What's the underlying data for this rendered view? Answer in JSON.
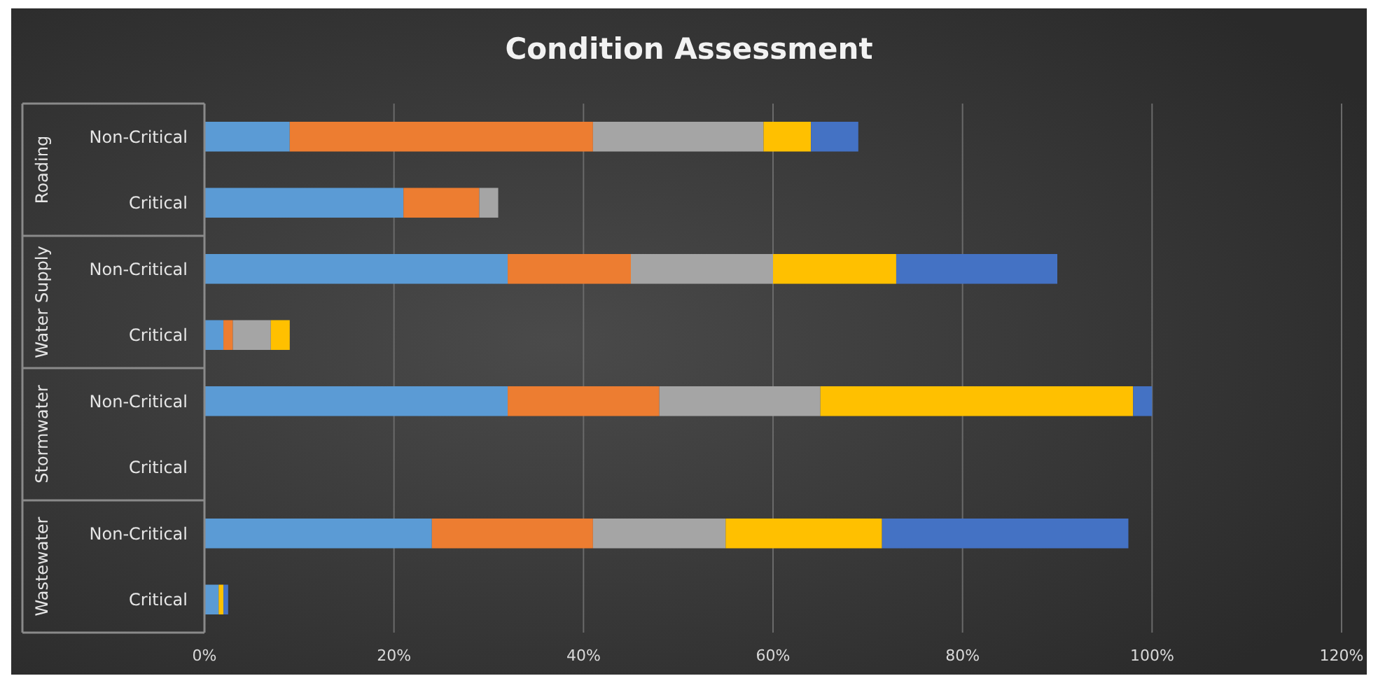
{
  "chart_data": {
    "type": "bar",
    "orientation": "horizontal",
    "stacked": true,
    "title": "Condition Assessment",
    "categories": [
      "Non-Critical",
      "Critical",
      "Non-Critical",
      "Critical",
      "Non-Critical",
      "Critical",
      "Non-Critical",
      "Critical"
    ],
    "annotations": [
      "Roading",
      "Water Supply",
      "Stormwater",
      "Wastewater"
    ],
    "series": [
      {
        "color": "#5b9bd5",
        "values": [
          9,
          21,
          32,
          2,
          32,
          0,
          24,
          1.5
        ]
      },
      {
        "color": "#ed7d31",
        "values": [
          32,
          8,
          13,
          1,
          16,
          0,
          17,
          0
        ]
      },
      {
        "color": "#a5a5a5",
        "values": [
          18,
          2,
          15,
          4,
          17,
          0,
          14,
          0
        ]
      },
      {
        "color": "#ffc000",
        "values": [
          5,
          0,
          13,
          2,
          33,
          0,
          16.5,
          0.5
        ]
      },
      {
        "color": "#4472c4",
        "values": [
          5,
          0,
          17,
          0,
          2,
          0,
          26,
          0.5
        ]
      }
    ],
    "xlim": [
      0,
      120
    ],
    "xticks": [
      {
        "value": 0,
        "label": "0%"
      },
      {
        "value": 20,
        "label": "20%"
      },
      {
        "value": 40,
        "label": "40%"
      },
      {
        "value": 60,
        "label": "60%"
      },
      {
        "value": 80,
        "label": "80%"
      },
      {
        "value": 100,
        "label": "100%"
      },
      {
        "value": 120,
        "label": "120%"
      }
    ],
    "grid": "x"
  }
}
